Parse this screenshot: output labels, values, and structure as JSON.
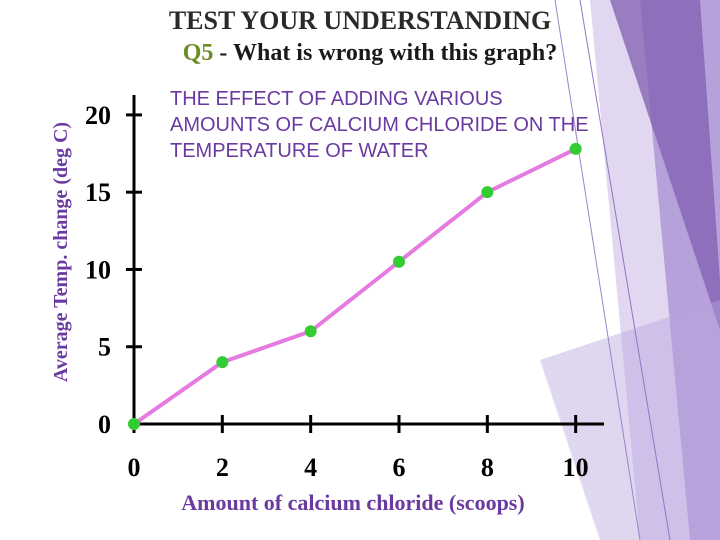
{
  "slide": {
    "heading": "TEST YOUR UNDERSTANDING",
    "question_number": "Q5",
    "question_text": " - What is wrong with this graph?",
    "heading_color": "#2a2a2a",
    "question_number_color": "#6b8e23",
    "decor_colors": [
      "#7f5fb0",
      "#a58ad1",
      "#c9b7e6"
    ]
  },
  "chart_data": {
    "type": "line",
    "title_lines": [
      "THE EFFECT OF ADDING VARIOUS",
      "AMOUNTS OF CALCIUM CHLORIDE ON THE",
      "TEMPERATURE OF WATER"
    ],
    "xlabel": "Amount of calcium chloride (scoops)",
    "ylabel": "Average Temp. change (deg C)",
    "x_ticks": [
      0,
      2,
      4,
      6,
      8,
      10
    ],
    "y_ticks": [
      0,
      5,
      10,
      15,
      20
    ],
    "xlim": [
      0,
      12
    ],
    "ylim": [
      0,
      22
    ],
    "series": [
      {
        "points": [
          {
            "x": 0,
            "y": 0
          },
          {
            "x": 2,
            "y": 4
          },
          {
            "x": 4,
            "y": 6
          },
          {
            "x": 6,
            "y": 10.5
          },
          {
            "x": 8,
            "y": 15
          },
          {
            "x": 10,
            "y": 17.8
          }
        ],
        "line_color": "#e57be0",
        "marker_color": "#33cc33"
      }
    ],
    "grid": false,
    "legend": "none"
  }
}
